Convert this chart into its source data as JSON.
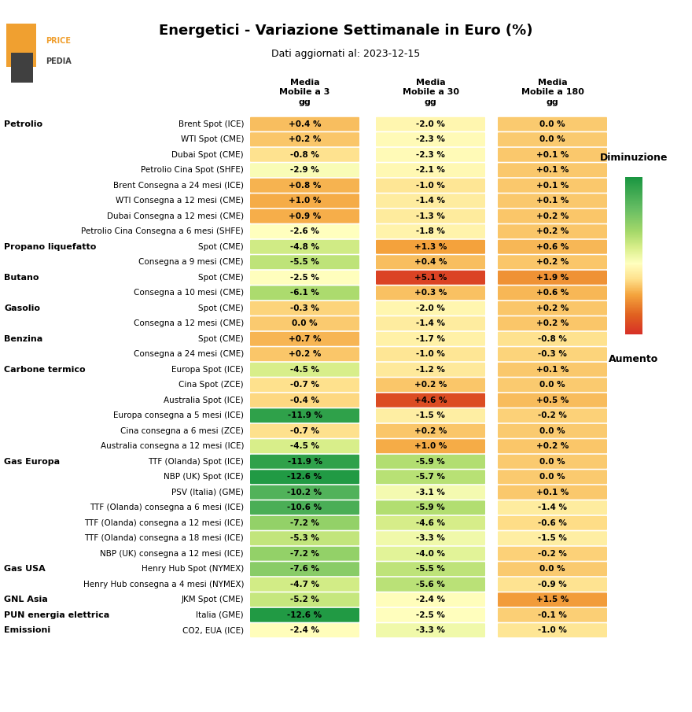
{
  "title": "Energetici - Variazione Settimanale in Euro (%)",
  "subtitle": "Dati aggiornati al: 2023-12-15",
  "col_headers": [
    "Media\nMobile a 3\ngg",
    "Media\nMobile a 30\ngg",
    "Media\nMobile a 180\ngg"
  ],
  "categories": [
    {
      "group": "Petrolio",
      "label": "Brent Spot (ICE)",
      "values": [
        0.4,
        -2.0,
        0.0
      ]
    },
    {
      "group": "",
      "label": "WTI Spot (CME)",
      "values": [
        0.2,
        -2.3,
        0.0
      ]
    },
    {
      "group": "",
      "label": "Dubai Spot (CME)",
      "values": [
        -0.8,
        -2.3,
        0.1
      ]
    },
    {
      "group": "",
      "label": "Petrolio Cina Spot (SHFE)",
      "values": [
        -2.9,
        -2.1,
        0.1
      ]
    },
    {
      "group": "",
      "label": "Brent Consegna a 24 mesi (ICE)",
      "values": [
        0.8,
        -1.0,
        0.1
      ]
    },
    {
      "group": "",
      "label": "WTI Consegna a 12 mesi (CME)",
      "values": [
        1.0,
        -1.4,
        0.1
      ]
    },
    {
      "group": "",
      "label": "Dubai Consegna a 12 mesi (CME)",
      "values": [
        0.9,
        -1.3,
        0.2
      ]
    },
    {
      "group": "",
      "label": "Petrolio Cina Consegna a 6 mesi (SHFE)",
      "values": [
        -2.6,
        -1.8,
        0.2
      ]
    },
    {
      "group": "Propano liquefatto",
      "label": "Spot (CME)",
      "values": [
        -4.8,
        1.3,
        0.6
      ]
    },
    {
      "group": "",
      "label": "Consegna a 9 mesi (CME)",
      "values": [
        -5.5,
        0.4,
        0.2
      ]
    },
    {
      "group": "Butano",
      "label": "Spot (CME)",
      "values": [
        -2.5,
        5.1,
        1.9
      ]
    },
    {
      "group": "",
      "label": "Consegna a 10 mesi (CME)",
      "values": [
        -6.1,
        0.3,
        0.6
      ]
    },
    {
      "group": "Gasolio",
      "label": "Spot (CME)",
      "values": [
        -0.3,
        -2.0,
        0.2
      ]
    },
    {
      "group": "",
      "label": "Consegna a 12 mesi (CME)",
      "values": [
        0.0,
        -1.4,
        0.2
      ]
    },
    {
      "group": "Benzina",
      "label": "Spot (CME)",
      "values": [
        0.7,
        -1.7,
        -0.8
      ]
    },
    {
      "group": "",
      "label": "Consegna a 24 mesi (CME)",
      "values": [
        0.2,
        -1.0,
        -0.3
      ]
    },
    {
      "group": "Carbone termico",
      "label": "Europa Spot (ICE)",
      "values": [
        -4.5,
        -1.2,
        0.1
      ]
    },
    {
      "group": "",
      "label": "Cina Spot (ZCE)",
      "values": [
        -0.7,
        0.2,
        0.0
      ]
    },
    {
      "group": "",
      "label": "Australia Spot (ICE)",
      "values": [
        -0.4,
        4.6,
        0.5
      ]
    },
    {
      "group": "",
      "label": "Europa consegna a 5 mesi (ICE)",
      "values": [
        -11.9,
        -1.5,
        -0.2
      ]
    },
    {
      "group": "",
      "label": "Cina consegna a 6 mesi (ZCE)",
      "values": [
        -0.7,
        0.2,
        0.0
      ]
    },
    {
      "group": "",
      "label": "Australia consegna a 12 mesi (ICE)",
      "values": [
        -4.5,
        1.0,
        0.2
      ]
    },
    {
      "group": "Gas Europa",
      "label": "TTF (Olanda) Spot (ICE)",
      "values": [
        -11.9,
        -5.9,
        0.0
      ]
    },
    {
      "group": "",
      "label": "NBP (UK) Spot (ICE)",
      "values": [
        -12.6,
        -5.7,
        0.0
      ]
    },
    {
      "group": "",
      "label": "PSV (Italia) (GME)",
      "values": [
        -10.2,
        -3.1,
        0.1
      ]
    },
    {
      "group": "",
      "label": "TTF (Olanda) consegna a 6 mesi (ICE)",
      "values": [
        -10.6,
        -5.9,
        -1.4
      ]
    },
    {
      "group": "",
      "label": "TTF (Olanda) consegna a 12 mesi (ICE)",
      "values": [
        -7.2,
        -4.6,
        -0.6
      ]
    },
    {
      "group": "",
      "label": "TTF (Olanda) consegna a 18 mesi (ICE)",
      "values": [
        -5.3,
        -3.3,
        -1.5
      ]
    },
    {
      "group": "",
      "label": "NBP (UK) consegna a 12 mesi (ICE)",
      "values": [
        -7.2,
        -4.0,
        -0.2
      ]
    },
    {
      "group": "Gas USA",
      "label": "Henry Hub Spot (NYMEX)",
      "values": [
        -7.6,
        -5.5,
        0.0
      ]
    },
    {
      "group": "",
      "label": "Henry Hub consegna a 4 mesi (NYMEX)",
      "values": [
        -4.7,
        -5.6,
        -0.9
      ]
    },
    {
      "group": "GNL Asia",
      "label": "JKM Spot (CME)",
      "values": [
        -5.2,
        -2.4,
        1.5
      ]
    },
    {
      "group": "PUN energia elettrica",
      "label": "Italia (GME)",
      "values": [
        -12.6,
        -2.5,
        -0.1
      ]
    },
    {
      "group": "Emissioni",
      "label": "CO2, EUA (ICE)",
      "values": [
        -2.4,
        -3.3,
        -1.0
      ]
    }
  ],
  "vmin": -13,
  "vmax": 6,
  "colorbar_label_top": "Diminuzione",
  "colorbar_label_bottom": "Aumento",
  "bg_color": "#ffffff",
  "title_fontsize": 13,
  "subtitle_fontsize": 9,
  "label_fontsize": 7.5,
  "group_fontsize": 8,
  "header_fontsize": 8,
  "cell_text_fontsize": 7.5
}
